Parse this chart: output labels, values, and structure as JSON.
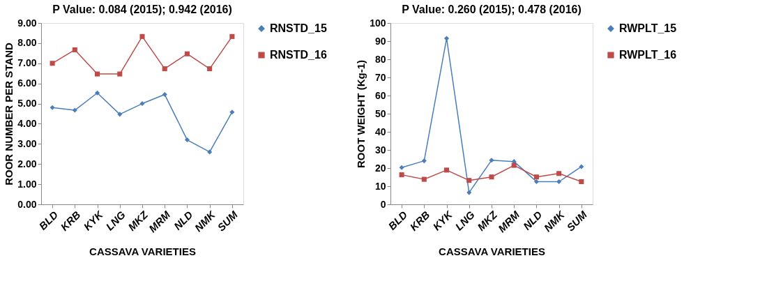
{
  "chart_data": [
    {
      "type": "line",
      "title": "P Value: 0.084 (2015); 0.942 (2016)",
      "xlabel": "CASSAVA VARIETIES",
      "ylabel": "ROOR NUMBER PER STAND",
      "categories": [
        "BLD",
        "KRB",
        "KYK",
        "LNG",
        "MKZ",
        "MRM",
        "NLD",
        "NMK",
        "SUM"
      ],
      "series": [
        {
          "name": "RNSTD_15",
          "color": "#4a7ebb",
          "marker": "diamond",
          "values": [
            4.8,
            4.67,
            5.53,
            4.47,
            5.0,
            5.45,
            3.2,
            2.6,
            4.58
          ]
        },
        {
          "name": "RNSTD_16",
          "color": "#be4b48",
          "marker": "square",
          "values": [
            7.0,
            7.67,
            6.47,
            6.47,
            8.33,
            6.73,
            7.47,
            6.73,
            8.33
          ]
        }
      ],
      "ylim": [
        0,
        9
      ],
      "yticks": [
        {
          "value": 0,
          "label": "0.00"
        },
        {
          "value": 1,
          "label": "1.00"
        },
        {
          "value": 2,
          "label": "2.00"
        },
        {
          "value": 3,
          "label": "3.00"
        },
        {
          "value": 4,
          "label": "4.00"
        },
        {
          "value": 5,
          "label": "5.00"
        },
        {
          "value": 6,
          "label": "6.00"
        },
        {
          "value": 7,
          "label": "7.00"
        },
        {
          "value": 8,
          "label": "8.00"
        },
        {
          "value": 9,
          "label": "9.00"
        }
      ],
      "grid": false,
      "legend": "right"
    },
    {
      "type": "line",
      "title": "P Value: 0.260 (2015); 0.478 (2016)",
      "xlabel": "CASSAVA VARIETIES",
      "ylabel": "ROOT WEIGHT (Kg-1)",
      "categories": [
        "BLD",
        "KRB",
        "KYK",
        "LNG",
        "MKZ",
        "MRM",
        "NLD",
        "NMK",
        "SUM"
      ],
      "series": [
        {
          "name": "RWPLT_15",
          "color": "#4a7ebb",
          "marker": "diamond",
          "values": [
            20.3,
            24,
            91.5,
            6.5,
            24.3,
            23.6,
            12.5,
            12.5,
            20.8
          ]
        },
        {
          "name": "RWPLT_16",
          "color": "#be4b48",
          "marker": "square",
          "values": [
            16.3,
            13.8,
            18.9,
            13.2,
            15.1,
            21.5,
            15.1,
            17,
            12.5
          ]
        }
      ],
      "ylim": [
        0,
        100
      ],
      "yticks": [
        0,
        10,
        20,
        30,
        40,
        50,
        60,
        70,
        80,
        90,
        100
      ],
      "grid": false,
      "legend": "right"
    }
  ]
}
